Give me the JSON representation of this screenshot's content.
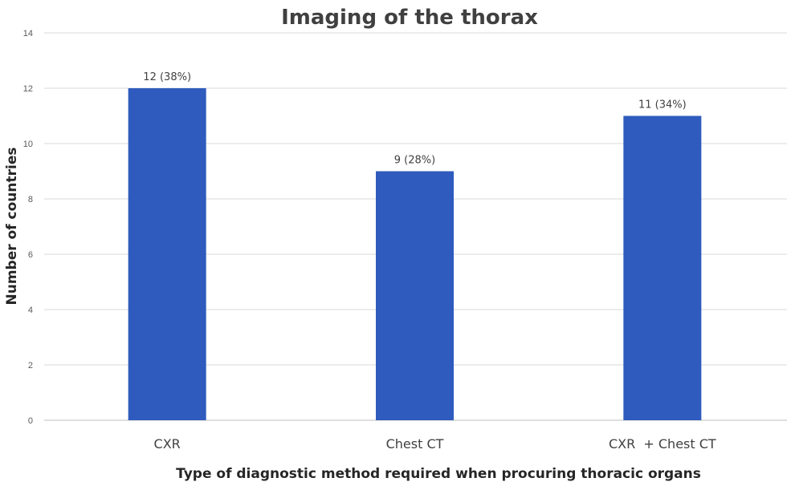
{
  "chart_data": {
    "type": "bar",
    "title": "Imaging of the thorax",
    "xlabel": "Type of diagnostic method required when procuring thoracic organs",
    "ylabel": "Number of countries",
    "categories": [
      "CXR",
      "Chest CT",
      "CXR  + Chest CT"
    ],
    "values": [
      12,
      9,
      11
    ],
    "data_labels": [
      "12 (38%)",
      "9 (28%)",
      "11 (34%)"
    ],
    "ylim": [
      0,
      14
    ],
    "yticks": [
      0,
      2,
      4,
      6,
      8,
      10,
      12,
      14
    ],
    "grid": true,
    "legend": "none",
    "bar_color": "#2e5bbd"
  }
}
